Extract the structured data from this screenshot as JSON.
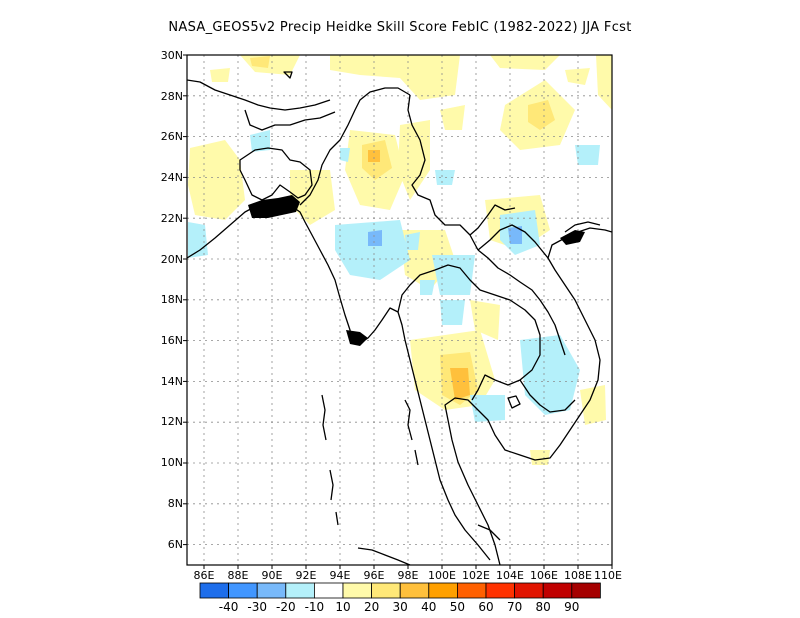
{
  "title": "NASA_GEOS5v2 Precip Heidke Skill Score FebIC (1982-2022) JJA Fcst",
  "colors": {
    "lat_labels": [
      "30N",
      "28N",
      "26N",
      "24N",
      "22N",
      "20N",
      "18N",
      "16N",
      "14N",
      "12N",
      "10N",
      "8N",
      "6N"
    ],
    "lon_labels": [
      "86E",
      "88E",
      "90E",
      "92E",
      "94E",
      "96E",
      "98E",
      "100E",
      "102E",
      "104E",
      "106E",
      "108E",
      "110E"
    ],
    "colorbar_bins": [
      "#1e6eeb",
      "#4196ff",
      "#78b9fa",
      "#b4f0fa",
      "#ffffff",
      "#fffaaa",
      "#ffe878",
      "#ffc03c",
      "#ffa000",
      "#ff6000",
      "#ff3200",
      "#e11400",
      "#c00000",
      "#a50000"
    ],
    "colorbar_ticks": [
      "-40",
      "-30",
      "-20",
      "-10",
      "10",
      "20",
      "30",
      "40",
      "50",
      "60",
      "70",
      "80",
      "90"
    ]
  },
  "chart_data": {
    "type": "heatmap",
    "title": "NASA_GEOS5v2 Precip Heidke Skill Score FebIC (1982-2022) JJA Fcst",
    "xlim": [
      85,
      110
    ],
    "ylim": [
      5,
      30
    ],
    "lat_ticks": [
      30,
      28,
      26,
      24,
      22,
      20,
      18,
      16,
      14,
      12,
      10,
      8,
      6
    ],
    "lon_ticks": [
      86,
      88,
      90,
      92,
      94,
      96,
      98,
      100,
      102,
      104,
      106,
      108,
      110
    ],
    "color_levels": [
      -40,
      -30,
      -20,
      -10,
      10,
      20,
      30,
      40,
      50,
      60,
      70,
      80,
      90
    ],
    "regions": [
      {
        "lon": 96.0,
        "lat": 24.8,
        "value": 25
      },
      {
        "lon": 95.0,
        "lat": 27.5,
        "value": 15
      },
      {
        "lon": 98.5,
        "lat": 26.5,
        "value": 15
      },
      {
        "lon": 101.5,
        "lat": 14.5,
        "value": 30
      },
      {
        "lon": 106.5,
        "lat": 27.0,
        "value": 20
      },
      {
        "lon": 89.0,
        "lat": 24.5,
        "value": 15
      },
      {
        "lon": 95.0,
        "lat": 20.5,
        "value": -15
      },
      {
        "lon": 95.5,
        "lat": 20.8,
        "value": -25
      },
      {
        "lon": 104.5,
        "lat": 20.5,
        "value": -15
      },
      {
        "lon": 105.0,
        "lat": 14.0,
        "value": -15
      },
      {
        "lon": 100.5,
        "lat": 18.3,
        "value": -15
      },
      {
        "lon": 98.0,
        "lat": 17.0,
        "value": -15
      },
      {
        "lon": 86.0,
        "lat": 21.0,
        "value": -15
      },
      {
        "lon": 108.0,
        "lat": 24.5,
        "value": -15
      },
      {
        "lon": 100.0,
        "lat": 22.0,
        "value": 15
      },
      {
        "lon": 102.0,
        "lat": 17.0,
        "value": 15
      }
    ]
  }
}
